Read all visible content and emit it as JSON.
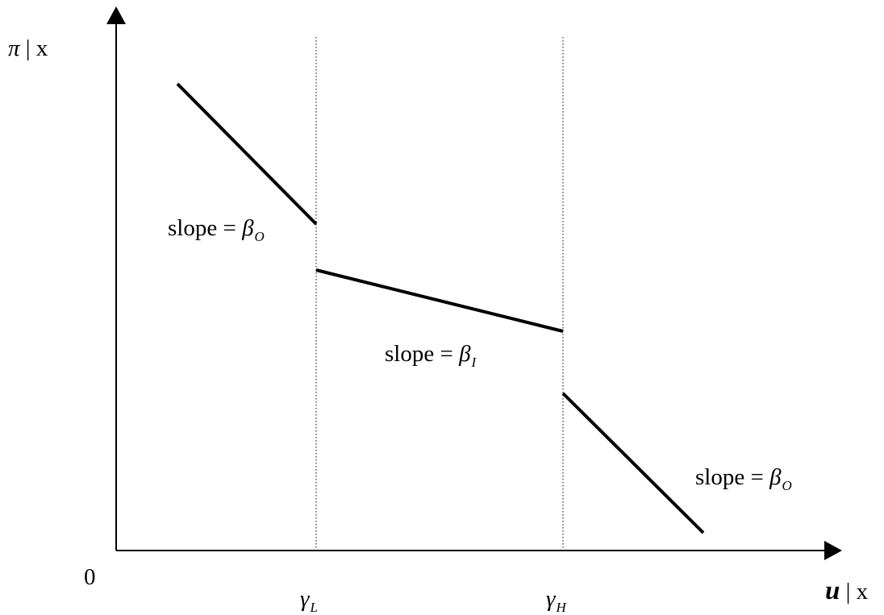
{
  "axes": {
    "y_label": {
      "symbol": "π",
      "separator": "|",
      "suffix": "x"
    },
    "x_label": {
      "symbol": "u",
      "separator": "|",
      "suffix": "x"
    },
    "origin_label": "0"
  },
  "thresholds": [
    {
      "symbol": "γ",
      "subscript": "L"
    },
    {
      "symbol": "γ",
      "subscript": "H"
    }
  ],
  "slope_labels": [
    {
      "text": "slope = ",
      "symbol": "β",
      "subscript": "O"
    },
    {
      "text": "slope = ",
      "symbol": "β",
      "subscript": "I"
    },
    {
      "text": "slope = ",
      "symbol": "β",
      "subscript": "O"
    }
  ],
  "colors": {
    "line": "#000000",
    "background": "#ffffff"
  }
}
